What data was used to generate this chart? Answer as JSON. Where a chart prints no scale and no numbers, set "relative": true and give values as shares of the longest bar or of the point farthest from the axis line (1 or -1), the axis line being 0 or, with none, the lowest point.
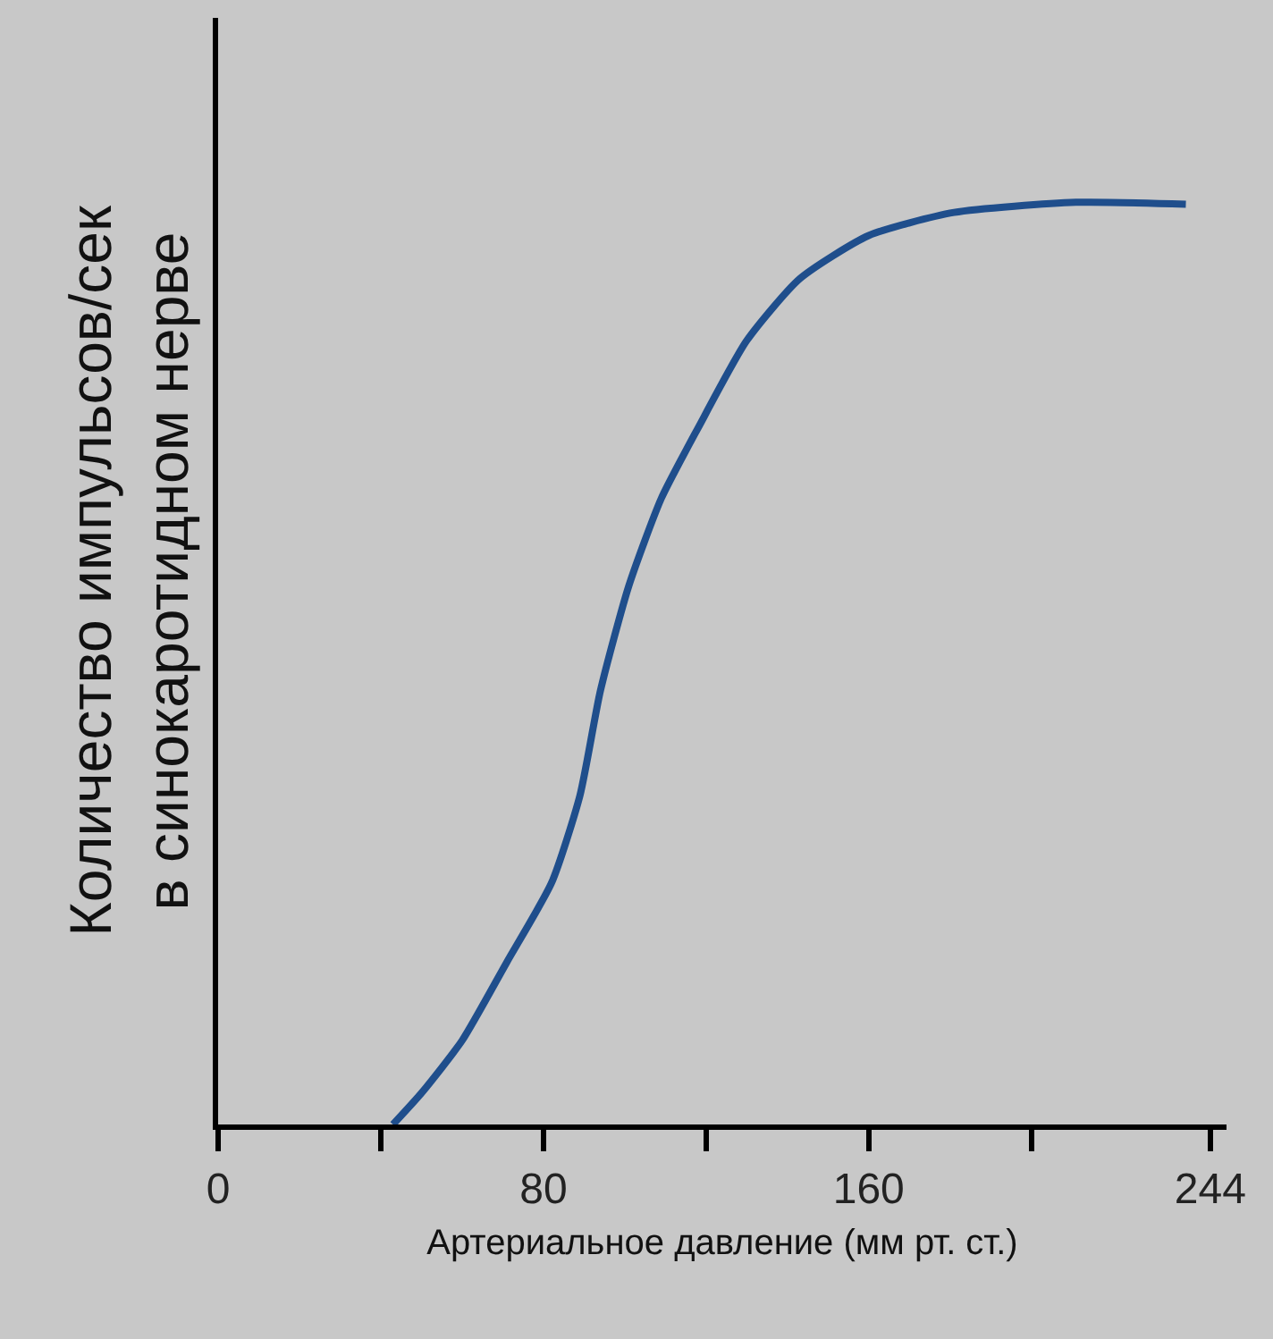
{
  "chart_data": {
    "type": "line",
    "xlabel": "Артериальное давление (мм рт. ст.)",
    "ylabel": "Количество импульсов/сек\nв синокаротидном нерве",
    "relative": true,
    "tick_labels": "x",
    "grid": false,
    "marker": "none",
    "line_style": "solid",
    "xlim": [
      0,
      248
    ],
    "xticks": [
      0,
      {
        "value": 40,
        "label": null
      },
      80,
      {
        "value": 120,
        "label": null
      },
      160,
      {
        "value": 200,
        "label": null
      },
      244
    ],
    "series": [
      {
        "color": "#1f4e8c",
        "x": [
          43,
          50,
          60,
          71,
          82,
          89,
          94,
          101,
          109,
          118,
          130,
          143,
          160,
          181,
          211,
          238
        ],
        "values": [
          0,
          0.034,
          0.091,
          0.176,
          0.262,
          0.357,
          0.47,
          0.584,
          0.679,
          0.755,
          0.85,
          0.917,
          0.964,
          0.989,
          1,
          0.998
        ]
      }
    ]
  }
}
